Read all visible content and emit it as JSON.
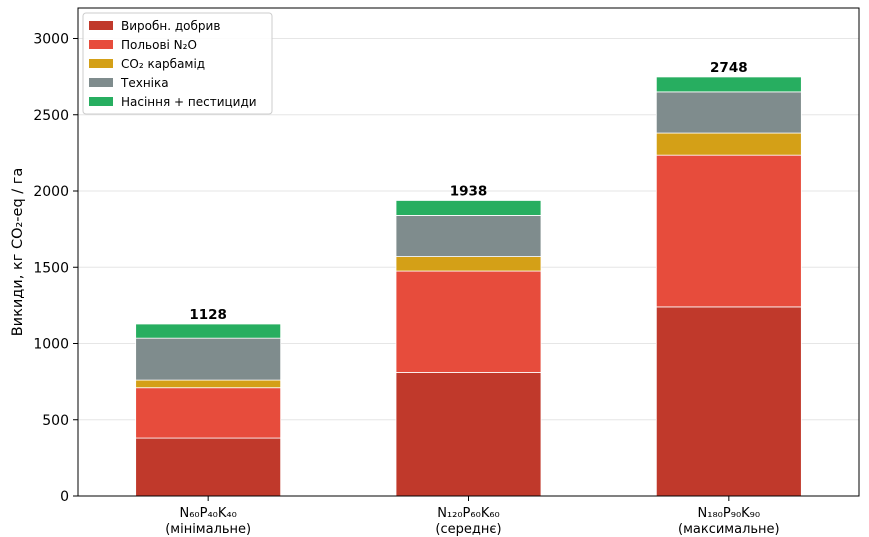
{
  "chart_data": {
    "type": "bar",
    "stacked": true,
    "ylabel": "Викиди, кг CO₂-eq / га",
    "ylim": [
      0,
      3200
    ],
    "yticks": [
      0,
      500,
      1000,
      1500,
      2000,
      2500,
      3000
    ],
    "grid": "y",
    "legend_position": "top-left",
    "categories": [
      [
        "N₆₀P₄₀K₄₀",
        "(мінімальне)"
      ],
      [
        "N₁₂₀P₆₀K₆₀",
        "(середнє)"
      ],
      [
        "N₁₈₀P₉₀K₉₀",
        "(максимальне)"
      ]
    ],
    "series": [
      {
        "name": "Виробн. добрив",
        "color": "#c0392b",
        "values": [
          380,
          810,
          1240
        ]
      },
      {
        "name": "Польові N₂O",
        "color": "#e74c3c",
        "values": [
          330,
          665,
          995
        ]
      },
      {
        "name": "CO₂ карбамід",
        "color": "#d4a017",
        "values": [
          50,
          95,
          145
        ]
      },
      {
        "name": "Техніка",
        "color": "#7f8c8d",
        "values": [
          275,
          270,
          270
        ]
      },
      {
        "name": "Насіння + пестициди",
        "color": "#27ae60",
        "values": [
          93,
          98,
          98
        ]
      }
    ],
    "totals": [
      "1128",
      "1938",
      "2748"
    ]
  }
}
